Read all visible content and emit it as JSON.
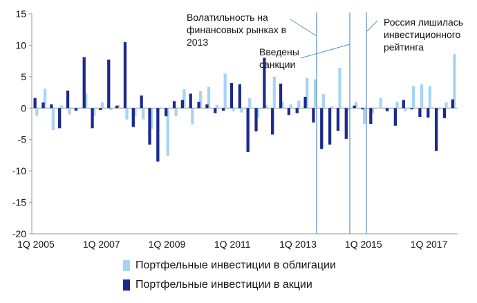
{
  "chart_data": {
    "type": "bar",
    "stacked": true,
    "x_tick_labels": [
      "1Q 2005",
      "1Q 2007",
      "1Q 2009",
      "1Q 2011",
      "1Q 2013",
      "1Q 2015",
      "1Q 2017"
    ],
    "ylim": [
      -20,
      15
    ],
    "y_ticks": [
      -20,
      -15,
      -10,
      -5,
      0,
      5,
      10,
      15
    ],
    "grid": false,
    "legend_position": "bottom",
    "categories": [
      "1Q 2005",
      "2Q 2005",
      "3Q 2005",
      "4Q 2005",
      "1Q 2006",
      "2Q 2006",
      "3Q 2006",
      "4Q 2006",
      "1Q 2007",
      "2Q 2007",
      "3Q 2007",
      "4Q 2007",
      "1Q 2008",
      "2Q 2008",
      "3Q 2008",
      "4Q 2008",
      "1Q 2009",
      "2Q 2009",
      "3Q 2009",
      "4Q 2009",
      "1Q 2010",
      "2Q 2010",
      "3Q 2010",
      "4Q 2010",
      "1Q 2011",
      "2Q 2011",
      "3Q 2011",
      "4Q 2011",
      "1Q 2012",
      "2Q 2012",
      "3Q 2012",
      "4Q 2012",
      "1Q 2013",
      "2Q 2013",
      "3Q 2013",
      "4Q 2013",
      "1Q 2014",
      "2Q 2014",
      "3Q 2014",
      "4Q 2014",
      "1Q 2015",
      "2Q 2015",
      "3Q 2015",
      "4Q 2015",
      "1Q 2016",
      "2Q 2016",
      "3Q 2016",
      "4Q 2016",
      "1Q 2017",
      "2Q 2017"
    ],
    "series": [
      {
        "name": "Портфельные инвестиции в облигации",
        "color": "#a7d4f2",
        "values": [
          -1.2,
          3.1,
          -3.5,
          0.4,
          -1.0,
          -0.2,
          2.3,
          -1.2,
          0.9,
          -0.3,
          0.5,
          -1.8,
          -1.2,
          -1.8,
          -3.3,
          -0.2,
          -7.6,
          -1.3,
          3.0,
          -2.6,
          2.7,
          3.4,
          0.5,
          5.5,
          -0.5,
          -0.7,
          1.6,
          -1.5,
          0.5,
          5.0,
          1.0,
          0.6,
          1.2,
          4.8,
          4.6,
          2.2,
          0.3,
          6.4,
          -0.4,
          1.0,
          -2.5,
          -0.8,
          1.6,
          -0.1,
          1.0,
          -0.5,
          3.5,
          3.8,
          3.5,
          -0.3
        ]
      },
      {
        "name": "Портфельные инвестиции в акции",
        "color": "#1a2a8c",
        "values": [
          1.6,
          0.9,
          0.6,
          -3.2,
          2.8,
          -0.4,
          8.1,
          -3.2,
          -0.3,
          7.7,
          0.4,
          10.5,
          -3.0,
          2.0,
          -5.8,
          -8.5,
          -1.3,
          1.1,
          1.3,
          2.3,
          1.0,
          0.6,
          -0.8,
          -0.4,
          4.0,
          3.8,
          -7.0,
          -3.7,
          8.0,
          -4.2,
          3.9,
          -1.1,
          -0.8,
          1.8,
          -2.3,
          -6.5,
          -5.8,
          -3.6,
          -4.9,
          0.4,
          -0.2,
          -2.5,
          0.0,
          -0.5,
          -2.8,
          1.3,
          -0.2,
          -1.4,
          -1.5,
          -6.8
        ]
      }
    ],
    "tail": {
      "categories": [
        "3Q 2017",
        "4Q 2017"
      ],
      "bonds": [
        0.9,
        8.6
      ],
      "equities": [
        -1.6,
        1.4
      ]
    },
    "annotations": [
      {
        "lines": [
          "Волатильность на",
          "финансовых рынках в",
          "2013"
        ],
        "x_category": "2Q 2013"
      },
      {
        "lines": [
          "Введены",
          "санкции"
        ],
        "x_category": "3Q 2014"
      },
      {
        "lines": [
          "Россия лишилась",
          "инвестиционного",
          "рейтинга"
        ],
        "x_category": "4Q 2014"
      }
    ]
  }
}
